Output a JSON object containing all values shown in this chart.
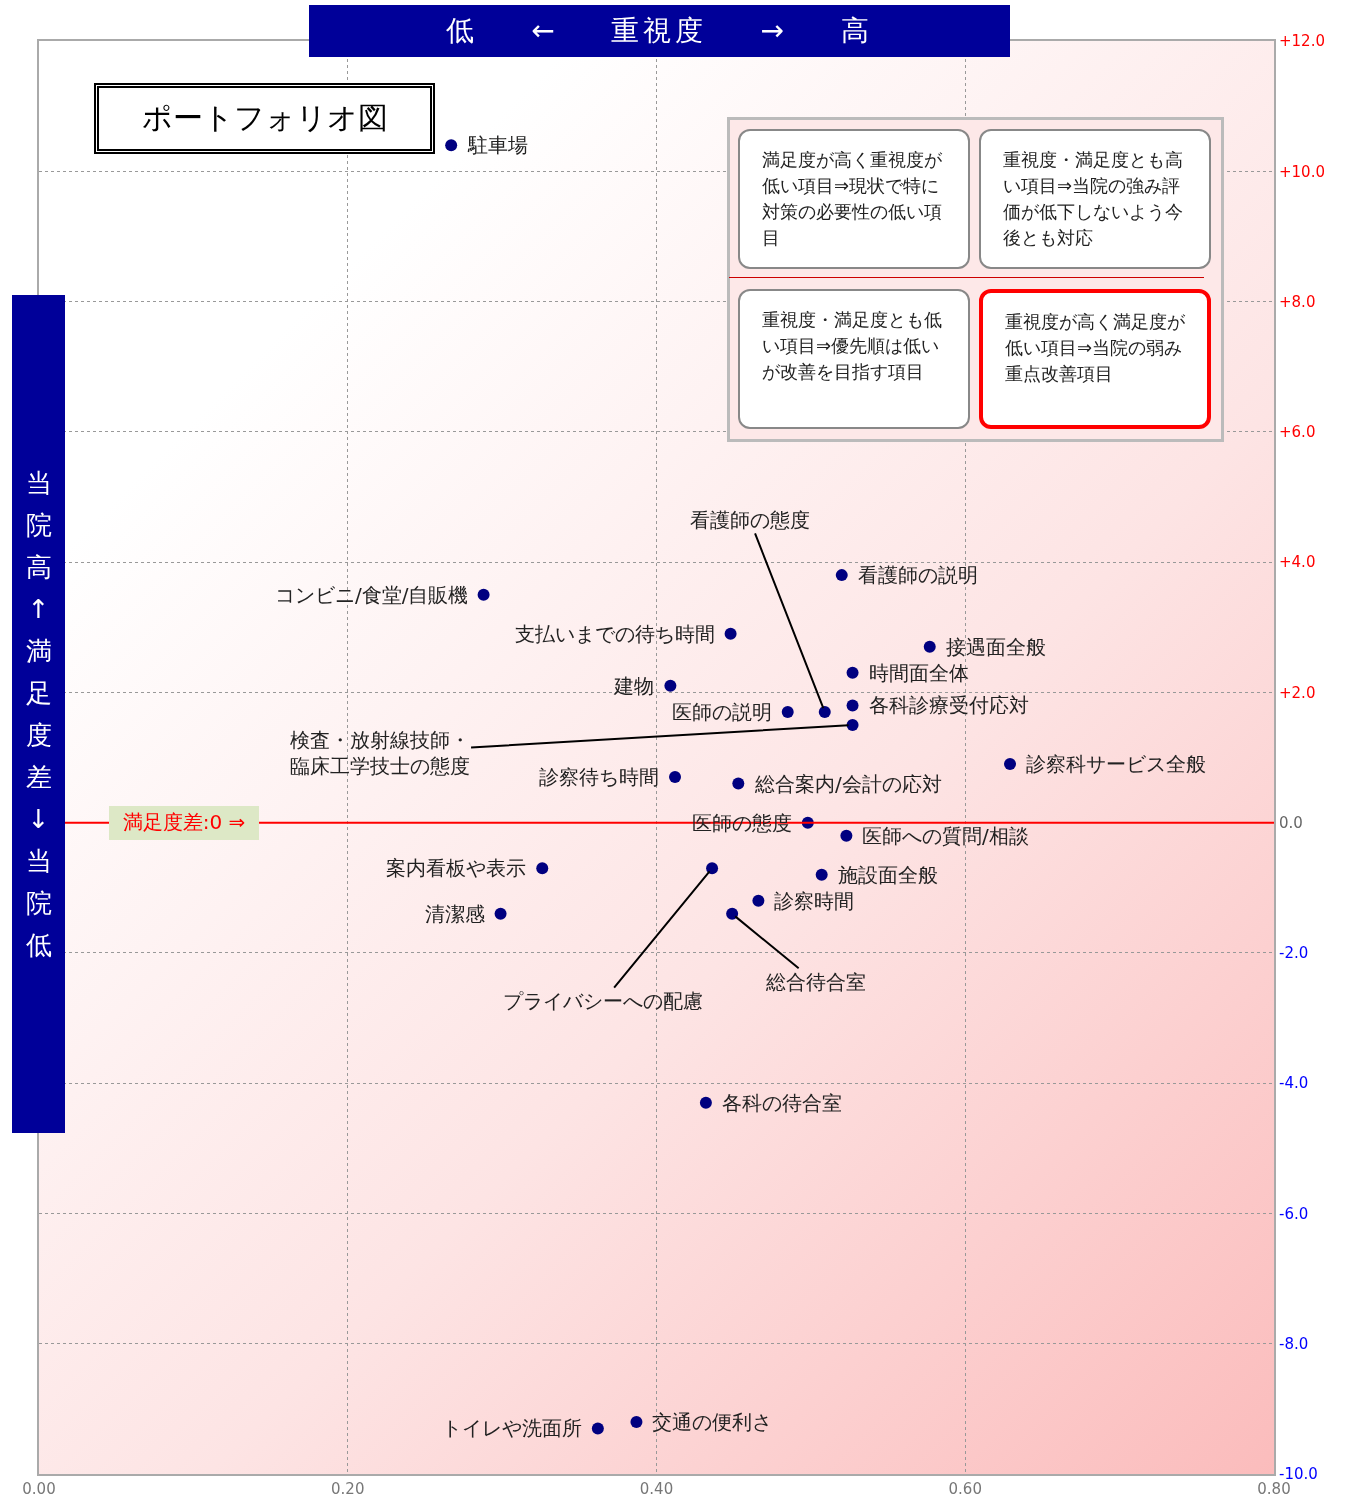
{
  "chart_data": {
    "type": "scatter",
    "title": "ポートフォリオ図",
    "xlabel": "低 ← 重視度 → 高",
    "ylabel": "当院高↑満足度差↓当院低",
    "xlim": [
      0,
      0.8
    ],
    "xticks": [
      {
        "value": 0,
        "label": "0.00"
      },
      {
        "value": 0.2,
        "label": "0.20"
      },
      {
        "value": 0.4,
        "label": "0.40"
      },
      {
        "value": 0.6,
        "label": "0.60"
      },
      {
        "value": 0.8,
        "label": "0.80"
      }
    ],
    "ylim": [
      -10,
      12
    ],
    "yticks": [
      {
        "value": -10,
        "label": "-10.0"
      },
      {
        "value": -8,
        "label": "-8.0"
      },
      {
        "value": -6,
        "label": "-6.0"
      },
      {
        "value": -4,
        "label": "-4.0"
      },
      {
        "value": -2,
        "label": "-2.0"
      },
      {
        "value": 0,
        "label": "0.0"
      },
      {
        "value": 2,
        "label": "+2.0"
      },
      {
        "value": 4,
        "label": "+4.0"
      },
      {
        "value": 6,
        "label": "+6.0"
      },
      {
        "value": 8,
        "label": "+8.0"
      },
      {
        "value": 10,
        "label": "+10.0"
      },
      {
        "value": 12,
        "label": "+12.0"
      }
    ],
    "grid": true,
    "marker": "circle",
    "series": [
      {
        "color": "#000080",
        "x": [
          0.267,
          0.288,
          0.52,
          0.448,
          0.577,
          0.527,
          0.409,
          0.527,
          0.485,
          0.509,
          0.527,
          0.629,
          0.412,
          0.453,
          0.498,
          0.523,
          0.326,
          0.436,
          0.507,
          0.466,
          0.299,
          0.449,
          0.432,
          0.387,
          0.362
        ],
        "values": [
          10.4,
          3.5,
          3.8,
          2.9,
          2.7,
          2.3,
          2.1,
          1.8,
          1.7,
          1.7,
          1.5,
          0.9,
          0.7,
          0.6,
          0.0,
          -0.2,
          -0.7,
          -0.7,
          -0.8,
          -1.2,
          -1.4,
          -1.4,
          -4.3,
          -9.2,
          -9.3
        ]
      }
    ],
    "ref_lines": [
      {
        "axis": "y",
        "value": 0,
        "label": "満足度差:0 ⇒",
        "color": "#ff0000",
        "line_style": "solid"
      }
    ],
    "annotations": [
      "満足度が高く重視度が低い項目⇒現状で特に対策の必要性の低い項目",
      "重視度・満足度とも高い項目⇒当院の強み評価が低下しないよう今後とも対応",
      "重視度・満足度とも低い項目⇒優先順は低いが改善を目指す項目",
      "重視度が高く満足度が低い項目⇒当院の弱み重点改善項目",
      {
        "text": "駐車場",
        "x": 0.267,
        "y": 10.4
      },
      {
        "text": "コンビニ/食堂/自販機",
        "x": 0.288,
        "y": 3.5
      },
      {
        "text": "看護師の説明",
        "x": 0.52,
        "y": 3.8
      },
      {
        "text": "支払いまでの待ち時間",
        "x": 0.448,
        "y": 2.9
      },
      {
        "text": "接遇面全般",
        "x": 0.577,
        "y": 2.7
      },
      {
        "text": "時間面全体",
        "x": 0.527,
        "y": 2.3
      },
      {
        "text": "建物",
        "x": 0.409,
        "y": 2.1
      },
      {
        "text": "各科診療受付応対",
        "x": 0.527,
        "y": 1.8
      },
      {
        "text": "医師の説明",
        "x": 0.485,
        "y": 1.7
      },
      {
        "text": "看護師の態度",
        "x": 0.509,
        "y": 1.7
      },
      {
        "text": "検査・放射線技師・臨床工学技士の態度",
        "x": 0.527,
        "y": 1.5
      },
      {
        "text": "診察科サービス全般",
        "x": 0.629,
        "y": 0.9
      },
      {
        "text": "診察待ち時間",
        "x": 0.412,
        "y": 0.7
      },
      {
        "text": "総合案内/会計の応対",
        "x": 0.453,
        "y": 0.6
      },
      {
        "text": "医師の態度",
        "x": 0.498,
        "y": 0.0
      },
      {
        "text": "医師への質問/相談",
        "x": 0.523,
        "y": -0.2
      },
      {
        "text": "案内看板や表示",
        "x": 0.326,
        "y": -0.7
      },
      {
        "text": "プライバシーへの配慮",
        "x": 0.436,
        "y": -0.7
      },
      {
        "text": "施設面全般",
        "x": 0.507,
        "y": -0.8
      },
      {
        "text": "診察時間",
        "x": 0.466,
        "y": -1.2
      },
      {
        "text": "清潔感",
        "x": 0.299,
        "y": -1.4
      },
      {
        "text": "総合待合室",
        "x": 0.449,
        "y": -1.4
      },
      {
        "text": "各科の待合室",
        "x": 0.432,
        "y": -4.3
      },
      {
        "text": "交通の便利さ",
        "x": 0.387,
        "y": -9.2
      },
      {
        "text": "トイレや洗面所",
        "x": 0.362,
        "y": -9.3
      }
    ]
  }
}
